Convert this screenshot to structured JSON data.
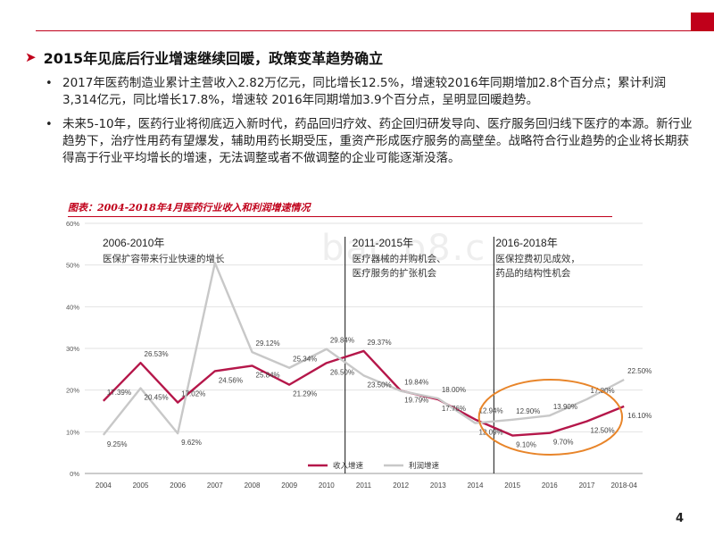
{
  "page": {
    "heading": "2015年见底后行业增速继续回暖，政策变革趋势确立",
    "bullets": [
      "2017年医药制造业累计主营收入2.82万亿元，同比增长12.5%，增速较2016年同期增加2.8个百分点；累计利润3,314亿元，同比增长17.8%，增速较 2016年同期增加3.9个百分点，呈明显回暖趋势。",
      "未来5-10年，医药行业将彻底迈入新时代，药品回归疗效、药企回归研发导向、医疗服务回归线下医疗的本源。新行业趋势下，治疗性用药有望爆发，辅助用药长期受压，重资产形成医疗服务的高壁垒。战略符合行业趋势的企业将长期获得高于行业平均增长的增速，无法调整或者不做调整的企业可能逐渐没落。"
    ],
    "chart_title": "图表：2004-2018年4月医药行业收入和利润增速情况",
    "page_number": "4",
    "watermark": "bac    o8.c",
    "colors": {
      "accent": "#c0001a",
      "revenue": "#b5174a",
      "profit": "#c8c8c8",
      "highlight_circle": "#e8852a"
    }
  },
  "chart_data": {
    "type": "line",
    "categories": [
      "2004",
      "2005",
      "2006",
      "2007",
      "2008",
      "2009",
      "2010",
      "2011",
      "2012",
      "2013",
      "2014",
      "2015",
      "2016",
      "2017",
      "2018-04"
    ],
    "ylim": [
      0,
      60
    ],
    "yticks": [
      "0%",
      "10%",
      "20%",
      "30%",
      "40%",
      "50%",
      "60%"
    ],
    "series": [
      {
        "name": "收入增速",
        "values": [
          17.39,
          26.53,
          17.02,
          24.56,
          25.84,
          21.29,
          26.5,
          29.37,
          19.84,
          17.76,
          12.94,
          9.1,
          9.7,
          12.5,
          16.1
        ]
      },
      {
        "name": "利润增速",
        "values": [
          9.25,
          20.45,
          9.62,
          50.5,
          29.12,
          25.34,
          29.84,
          23.5,
          19.79,
          18.0,
          12.09,
          12.9,
          13.9,
          17.8,
          22.5
        ]
      }
    ],
    "point_labels": [
      {
        "text": "17.39%",
        "series": 0,
        "index": 0
      },
      {
        "text": "26.53%",
        "series": 0,
        "index": 1
      },
      {
        "text": "17.02%",
        "series": 0,
        "index": 2
      },
      {
        "text": "24.56%",
        "series": 0,
        "index": 3
      },
      {
        "text": "25.84%",
        "series": 0,
        "index": 4
      },
      {
        "text": "21.29%",
        "series": 0,
        "index": 5
      },
      {
        "text": "26.50%",
        "series": 0,
        "index": 6
      },
      {
        "text": "29.37%",
        "series": 0,
        "index": 7
      },
      {
        "text": "19.84%",
        "series": 0,
        "index": 8
      },
      {
        "text": "17.76%",
        "series": 0,
        "index": 9
      },
      {
        "text": "12.94%",
        "series": 0,
        "index": 10
      },
      {
        "text": "9.10%",
        "series": 0,
        "index": 11
      },
      {
        "text": "9.70%",
        "series": 0,
        "index": 12
      },
      {
        "text": "12.50%",
        "series": 0,
        "index": 13
      },
      {
        "text": "16.10%",
        "series": 0,
        "index": 14
      },
      {
        "text": "9.25%",
        "series": 1,
        "index": 0
      },
      {
        "text": "20.45%",
        "series": 1,
        "index": 1
      },
      {
        "text": "9.62%",
        "series": 1,
        "index": 2
      },
      {
        "text": "29.12%",
        "series": 1,
        "index": 4
      },
      {
        "text": "25.34%",
        "series": 1,
        "index": 5
      },
      {
        "text": "29.84%",
        "series": 1,
        "index": 6
      },
      {
        "text": "23.50%",
        "series": 1,
        "index": 7
      },
      {
        "text": "19.79%",
        "series": 1,
        "index": 8
      },
      {
        "text": "18.00%",
        "series": 1,
        "index": 9
      },
      {
        "text": "12.09%",
        "series": 1,
        "index": 10
      },
      {
        "text": "12.90%",
        "series": 1,
        "index": 11
      },
      {
        "text": "13.90%",
        "series": 1,
        "index": 12
      },
      {
        "text": "17.80%",
        "series": 1,
        "index": 13
      },
      {
        "text": "22.50%",
        "series": 1,
        "index": 14
      }
    ],
    "periods": [
      {
        "title": "2006-2010年",
        "desc": [
          "医保扩容带来行业快速的增长"
        ]
      },
      {
        "title": "2011-2015年",
        "desc": [
          "医疗器械的并购机会、",
          "医疗服务的扩张机会"
        ]
      },
      {
        "title": "2016-2018年",
        "desc": [
          "医保控费初见成效，",
          "药品的结构性机会"
        ]
      }
    ],
    "divider_after": [
      "2010",
      "2014"
    ],
    "highlight": "2015-2018-04",
    "legend_position": "bottom-left",
    "grid": "horizontal"
  }
}
